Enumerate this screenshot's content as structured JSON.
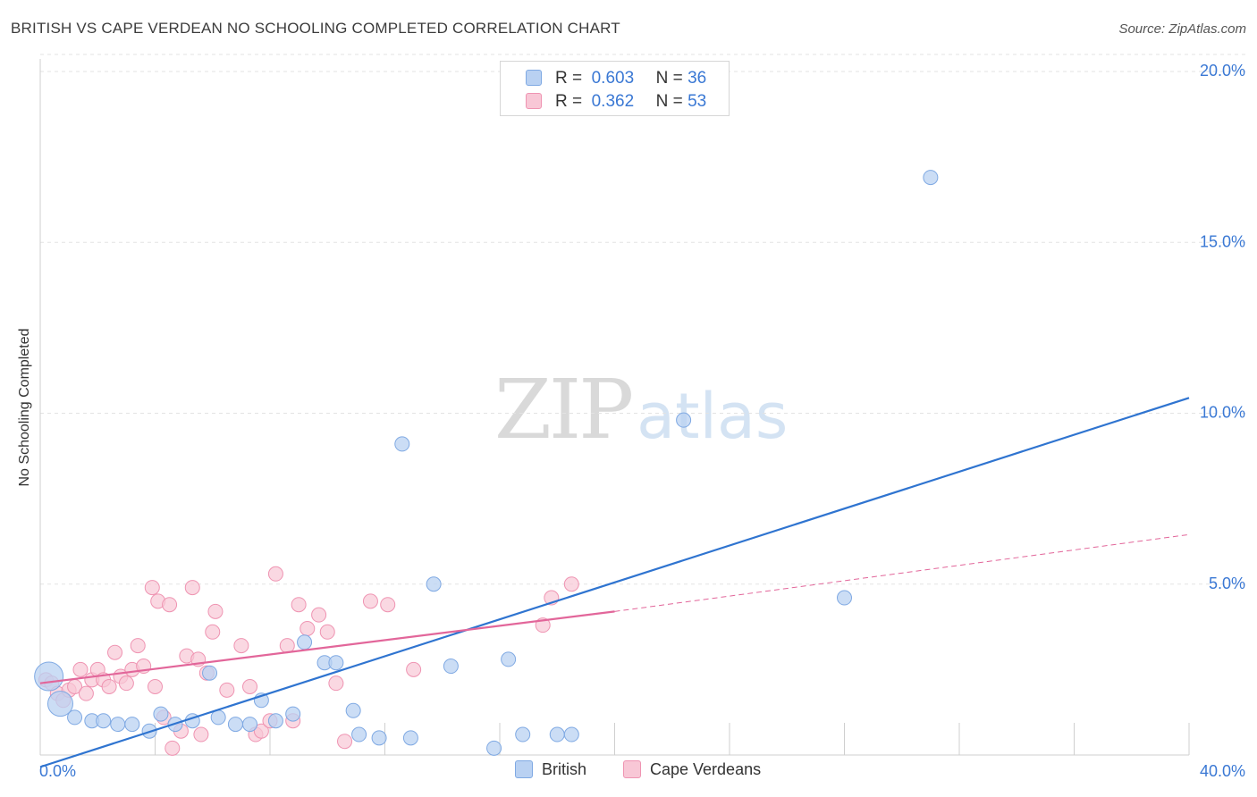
{
  "header": {
    "title": "BRITISH VS CAPE VERDEAN NO SCHOOLING COMPLETED CORRELATION CHART",
    "source": "Source: ZipAtlas.com"
  },
  "watermark": {
    "zip": "ZIP",
    "atlas": "atlas"
  },
  "colors": {
    "british_fill": "#b9d1f2",
    "british_stroke": "#7fa9e3",
    "british_line": "#2f74d0",
    "cape_fill": "#f8c7d6",
    "cape_stroke": "#ef94b2",
    "cape_line": "#e2669a",
    "value_text": "#3a78d4"
  },
  "legend": {
    "british": {
      "r_label": "R =",
      "r_value": "0.603",
      "n_label": "N =",
      "n_value": "36"
    },
    "cape": {
      "r_label": "R =",
      "r_value": "0.362",
      "n_label": "N =",
      "n_value": "53"
    }
  },
  "chart_data": {
    "type": "scatter",
    "title": "BRITISH VS CAPE VERDEAN NO SCHOOLING COMPLETED CORRELATION CHART",
    "xlabel": "",
    "ylabel": "No Schooling Completed",
    "xlim": [
      0,
      40
    ],
    "ylim": [
      0,
      20.5
    ],
    "x_tick_labels": [
      "0.0%",
      "40.0%"
    ],
    "y_ticks": [
      5,
      10,
      15,
      20
    ],
    "y_tick_labels": [
      "5.0%",
      "10.0%",
      "15.0%",
      "20.0%"
    ],
    "grid": true,
    "legend_position": "top-center",
    "series": [
      {
        "name": "British",
        "points": [
          [
            0.3,
            2.3
          ],
          [
            0.7,
            1.5
          ],
          [
            1.2,
            1.1
          ],
          [
            1.8,
            1.0
          ],
          [
            2.2,
            1.0
          ],
          [
            2.7,
            0.9
          ],
          [
            3.2,
            0.9
          ],
          [
            3.8,
            0.7
          ],
          [
            4.2,
            1.2
          ],
          [
            4.7,
            0.9
          ],
          [
            5.3,
            1.0
          ],
          [
            5.9,
            2.4
          ],
          [
            6.2,
            1.1
          ],
          [
            6.8,
            0.9
          ],
          [
            7.3,
            0.9
          ],
          [
            7.7,
            1.6
          ],
          [
            8.2,
            1.0
          ],
          [
            8.8,
            1.2
          ],
          [
            9.2,
            3.3
          ],
          [
            9.9,
            2.7
          ],
          [
            10.3,
            2.7
          ],
          [
            10.9,
            1.3
          ],
          [
            11.1,
            0.6
          ],
          [
            11.8,
            0.5
          ],
          [
            12.6,
            9.1
          ],
          [
            12.9,
            0.5
          ],
          [
            13.7,
            5.0
          ],
          [
            14.3,
            2.6
          ],
          [
            15.8,
            0.2
          ],
          [
            16.3,
            2.8
          ],
          [
            16.8,
            0.6
          ],
          [
            18.0,
            0.6
          ],
          [
            18.5,
            0.6
          ],
          [
            22.4,
            9.8
          ],
          [
            28.0,
            4.6
          ],
          [
            31.0,
            16.9
          ]
        ],
        "trendline": {
          "x": [
            0,
            40
          ],
          "y": [
            -0.35,
            10.45
          ],
          "style": "solid"
        }
      },
      {
        "name": "Cape Verdeans",
        "points": [
          [
            0.2,
            2.2
          ],
          [
            0.4,
            2.1
          ],
          [
            0.6,
            1.8
          ],
          [
            0.8,
            1.6
          ],
          [
            1.0,
            1.9
          ],
          [
            1.2,
            2.0
          ],
          [
            1.4,
            2.5
          ],
          [
            1.6,
            1.8
          ],
          [
            1.8,
            2.2
          ],
          [
            2.0,
            2.5
          ],
          [
            2.2,
            2.2
          ],
          [
            2.4,
            2.0
          ],
          [
            2.6,
            3.0
          ],
          [
            2.8,
            2.3
          ],
          [
            3.0,
            2.1
          ],
          [
            3.2,
            2.5
          ],
          [
            3.4,
            3.2
          ],
          [
            3.6,
            2.6
          ],
          [
            3.9,
            4.9
          ],
          [
            4.0,
            2.0
          ],
          [
            4.1,
            4.5
          ],
          [
            4.3,
            1.1
          ],
          [
            4.5,
            4.4
          ],
          [
            4.6,
            0.2
          ],
          [
            4.9,
            0.7
          ],
          [
            5.1,
            2.9
          ],
          [
            5.3,
            4.9
          ],
          [
            5.5,
            2.8
          ],
          [
            5.6,
            0.6
          ],
          [
            5.8,
            2.4
          ],
          [
            6.0,
            3.6
          ],
          [
            6.1,
            4.2
          ],
          [
            6.5,
            1.9
          ],
          [
            7.0,
            3.2
          ],
          [
            7.3,
            2.0
          ],
          [
            7.5,
            0.6
          ],
          [
            7.7,
            0.7
          ],
          [
            8.0,
            1.0
          ],
          [
            8.2,
            5.3
          ],
          [
            8.6,
            3.2
          ],
          [
            8.8,
            1.0
          ],
          [
            9.0,
            4.4
          ],
          [
            9.3,
            3.7
          ],
          [
            9.7,
            4.1
          ],
          [
            10.0,
            3.6
          ],
          [
            10.3,
            2.1
          ],
          [
            10.6,
            0.4
          ],
          [
            11.5,
            4.5
          ],
          [
            12.1,
            4.4
          ],
          [
            13.0,
            2.5
          ],
          [
            17.5,
            3.8
          ],
          [
            17.8,
            4.6
          ],
          [
            18.5,
            5.0
          ]
        ],
        "trendline": {
          "x": [
            0,
            20
          ],
          "y": [
            2.1,
            4.2
          ],
          "style": "solid"
        },
        "trendline_extension": {
          "x": [
            20,
            40
          ],
          "y": [
            4.2,
            6.45
          ],
          "style": "dashed"
        }
      }
    ]
  }
}
